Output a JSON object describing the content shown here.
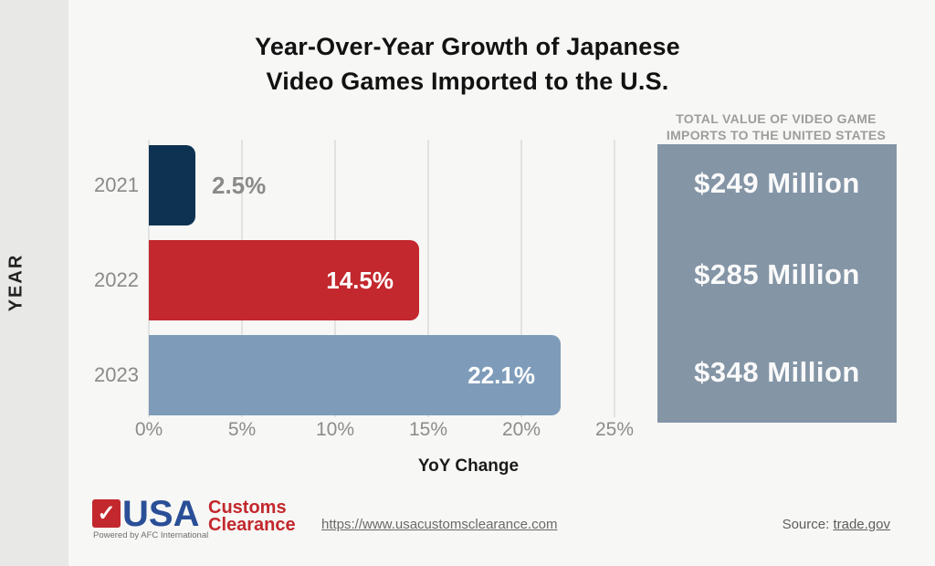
{
  "title": {
    "line1": "Year-Over-Year Growth of Japanese",
    "line2": "Video Games Imported to the U.S."
  },
  "chart_data": {
    "type": "bar",
    "orientation": "horizontal",
    "categories": [
      "2021",
      "2022",
      "2023"
    ],
    "values": [
      2.5,
      14.5,
      22.1
    ],
    "value_labels": [
      "2.5%",
      "14.5%",
      "22.1%"
    ],
    "bar_colors": [
      "#0e3252",
      "#c2282e",
      "#7e9cba"
    ],
    "xlabel": "YoY Change",
    "ylabel": "YEAR",
    "xlim": [
      0,
      25
    ],
    "tick_labels": [
      "0%",
      "5%",
      "10%",
      "15%",
      "20%",
      "25%"
    ],
    "grid": true,
    "gridline_color": "#e2e2e0"
  },
  "side_panel": {
    "header_line1": "TOTAL VALUE OF VIDEO GAME",
    "header_line2": "IMPORTS TO THE UNITED STATES",
    "values": [
      "$249 Million",
      "$285 Million",
      "$348 Million"
    ],
    "box_color": "#8495a6"
  },
  "footer": {
    "logo": {
      "check": "✓",
      "usa": "USA",
      "customs_line1": "Customs",
      "customs_line2": "Clearance",
      "powered": "Powered by AFC International",
      "blue": "#2a4f97",
      "red": "#c2282d"
    },
    "url": "https://www.usacustomsclearance.com",
    "source_label": "Source: ",
    "source_link": "trade.gov"
  }
}
